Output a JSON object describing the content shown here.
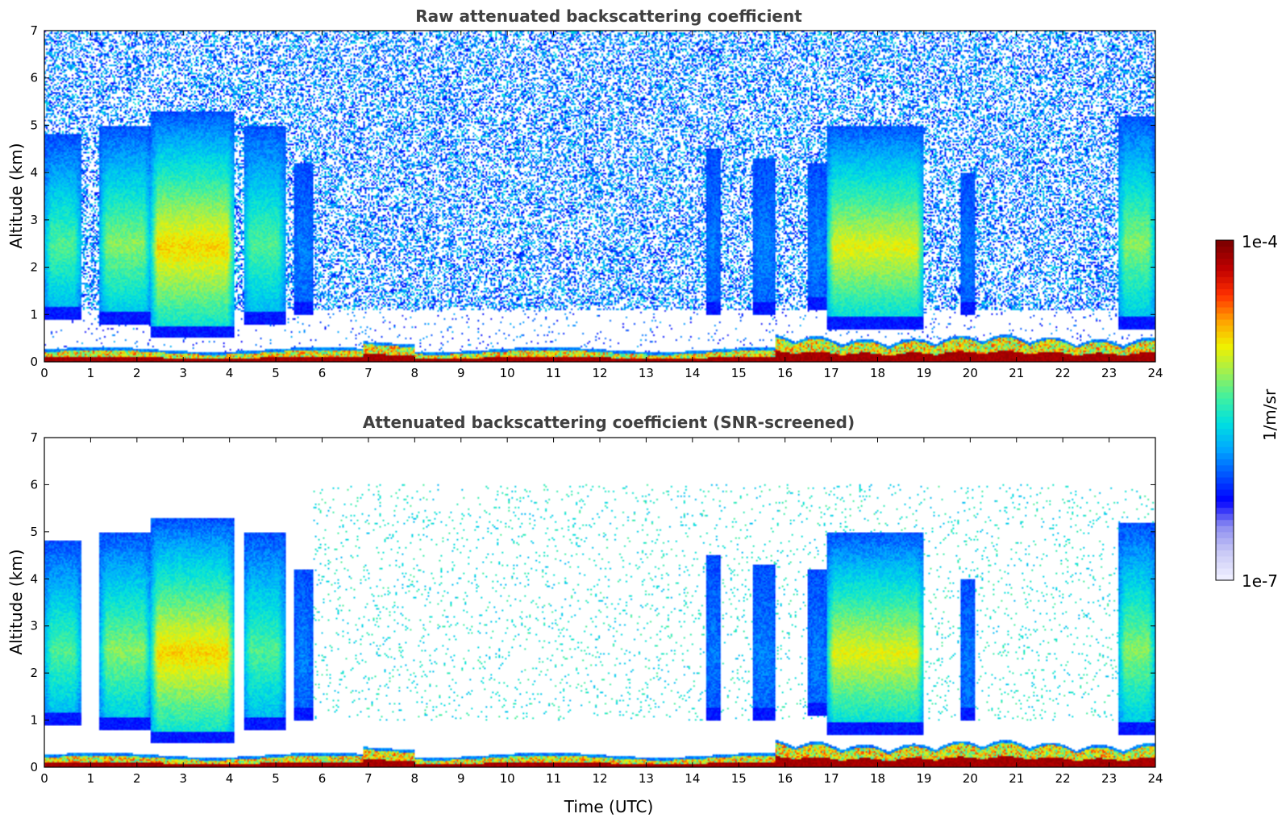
{
  "chart_data": [
    {
      "type": "heatmap",
      "title": "Raw attenuated backscattering coefficient",
      "xlabel": "",
      "ylabel": "Altitude (km)",
      "xlim": [
        0,
        24
      ],
      "ylim": [
        0,
        7
      ],
      "xticks": [
        "0",
        "1",
        "2",
        "3",
        "4",
        "5",
        "6",
        "7",
        "8",
        "9",
        "10",
        "11",
        "12",
        "13",
        "14",
        "15",
        "16",
        "17",
        "18",
        "19",
        "20",
        "21",
        "22",
        "23",
        "24"
      ],
      "yticks": [
        "0",
        "1",
        "2",
        "3",
        "4",
        "5",
        "6",
        "7"
      ],
      "screened": false,
      "aerosol_columns": [
        {
          "t0": 0.0,
          "t1": 0.8,
          "top_km": 4.8,
          "base_km": 0.9,
          "peak": 0.55
        },
        {
          "t0": 1.2,
          "t1": 2.3,
          "top_km": 5.0,
          "base_km": 0.8,
          "peak": 0.6
        },
        {
          "t0": 2.3,
          "t1": 4.1,
          "top_km": 5.3,
          "base_km": 0.5,
          "peak": 0.72
        },
        {
          "t0": 4.3,
          "t1": 5.2,
          "top_km": 5.0,
          "base_km": 0.8,
          "peak": 0.55
        },
        {
          "t0": 5.4,
          "t1": 5.8,
          "top_km": 4.2,
          "base_km": 1.0,
          "peak": 0.35
        },
        {
          "t0": 14.3,
          "t1": 14.6,
          "top_km": 4.5,
          "base_km": 1.0,
          "peak": 0.35
        },
        {
          "t0": 15.3,
          "t1": 15.8,
          "top_km": 4.3,
          "base_km": 1.0,
          "peak": 0.35
        },
        {
          "t0": 16.5,
          "t1": 16.9,
          "top_km": 4.2,
          "base_km": 1.1,
          "peak": 0.35
        },
        {
          "t0": 16.9,
          "t1": 19.0,
          "top_km": 5.0,
          "base_km": 0.7,
          "peak": 0.68
        },
        {
          "t0": 19.8,
          "t1": 20.1,
          "top_km": 4.0,
          "base_km": 1.0,
          "peak": 0.35
        },
        {
          "t0": 23.2,
          "t1": 24.0,
          "top_km": 5.2,
          "base_km": 0.7,
          "peak": 0.6
        }
      ]
    },
    {
      "type": "heatmap",
      "title": "Attenuated backscattering coefficient (SNR-screened)",
      "xlabel": "Time (UTC)",
      "ylabel": "Altitude (km)",
      "xlim": [
        0,
        24
      ],
      "ylim": [
        0,
        7
      ],
      "xticks": [
        "0",
        "1",
        "2",
        "3",
        "4",
        "5",
        "6",
        "7",
        "8",
        "9",
        "10",
        "11",
        "12",
        "13",
        "14",
        "15",
        "16",
        "17",
        "18",
        "19",
        "20",
        "21",
        "22",
        "23",
        "24"
      ],
      "yticks": [
        "0",
        "1",
        "2",
        "3",
        "4",
        "5",
        "6",
        "7"
      ],
      "screened": true
    }
  ],
  "colorbar": {
    "label": "1/m/sr",
    "max_label": "1e-4",
    "min_label": "1e-7",
    "scale": "log",
    "range": [
      1e-07,
      0.0001
    ],
    "colors": [
      "#eeeeff",
      "#c8c8f5",
      "#8c8cf0",
      "#0000ff",
      "#0055ff",
      "#00a8ff",
      "#00e0e0",
      "#40f0a0",
      "#a0f050",
      "#f0f000",
      "#ffa000",
      "#ff3000",
      "#c00000",
      "#800000"
    ]
  }
}
